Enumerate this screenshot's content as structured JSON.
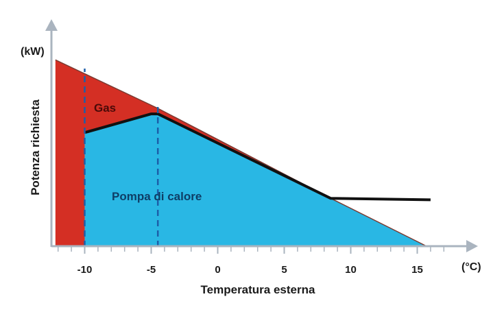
{
  "chart_data": {
    "type": "area",
    "xlabel": "Temperatura esterna",
    "ylabel": "Potenza richiesta",
    "x_unit": "(°C)",
    "y_unit": "(kW)",
    "xlim": [
      -12.5,
      17.5
    ],
    "ylim": [
      0,
      28
    ],
    "x_ticks": [
      -10,
      -5,
      0,
      5,
      10,
      15
    ],
    "x_tick_labels": [
      "-10",
      "-5",
      "0",
      "5",
      "10",
      "15"
    ],
    "grid": false,
    "legend": "none",
    "series": [
      {
        "name": "Gas",
        "color": "#d42f24",
        "x": [
          -12.2,
          -10,
          -4.5,
          8.5,
          15.8
        ],
        "y_total": [
          27,
          25,
          20,
          7,
          0
        ]
      },
      {
        "name": "Pompa di calore",
        "color": "#29b7e4",
        "x": [
          -10,
          -5,
          -4.5,
          8.5,
          15.8
        ],
        "y": [
          16.5,
          19.2,
          19.2,
          7,
          0
        ]
      }
    ],
    "heat_pump_output_line": {
      "x": [
        -10,
        -5,
        -4.5,
        8.5,
        16
      ],
      "y": [
        16.5,
        19.2,
        19.2,
        7,
        6.8
      ],
      "color": "#111111"
    },
    "vertical_markers": [
      {
        "x": -10,
        "color": "#1c5fa8",
        "style": "dashed"
      },
      {
        "x": -4.5,
        "color": "#1c5fa8",
        "style": "dashed"
      }
    ]
  }
}
